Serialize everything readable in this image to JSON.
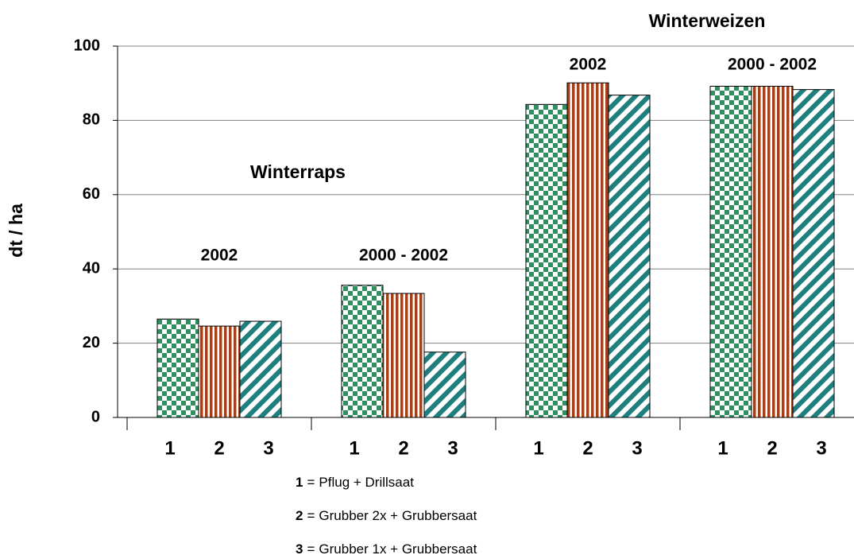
{
  "chart_data": {
    "type": "bar",
    "y_label": "dt / ha",
    "categories": [
      "2002",
      "2000 - 2002",
      "2002",
      "2000 - 2002"
    ],
    "annotations": [
      "Winterraps",
      "Winterweizen"
    ],
    "legend_separator": "=",
    "series": [
      {
        "key": "1",
        "name": "Pflug + Drillsaat",
        "color": "#2f8f5f",
        "pattern": "checker",
        "values": [
          26.5,
          35.6,
          84.3,
          89.2
        ]
      },
      {
        "key": "2",
        "name": "Grubber 2x + Grubbersaat",
        "color": "#a3411c",
        "pattern": "vstripes",
        "values": [
          24.6,
          33.4,
          90.1,
          89.2
        ]
      },
      {
        "key": "3",
        "name": "Grubber 1x + Grubbersaat",
        "color": "#1f7f7f",
        "pattern": "diagonal",
        "values": [
          25.9,
          17.6,
          86.8,
          88.3
        ]
      }
    ],
    "ylim": [
      0,
      100
    ],
    "yticks": [
      0,
      20,
      40,
      60,
      80,
      100
    ],
    "grid": true
  }
}
